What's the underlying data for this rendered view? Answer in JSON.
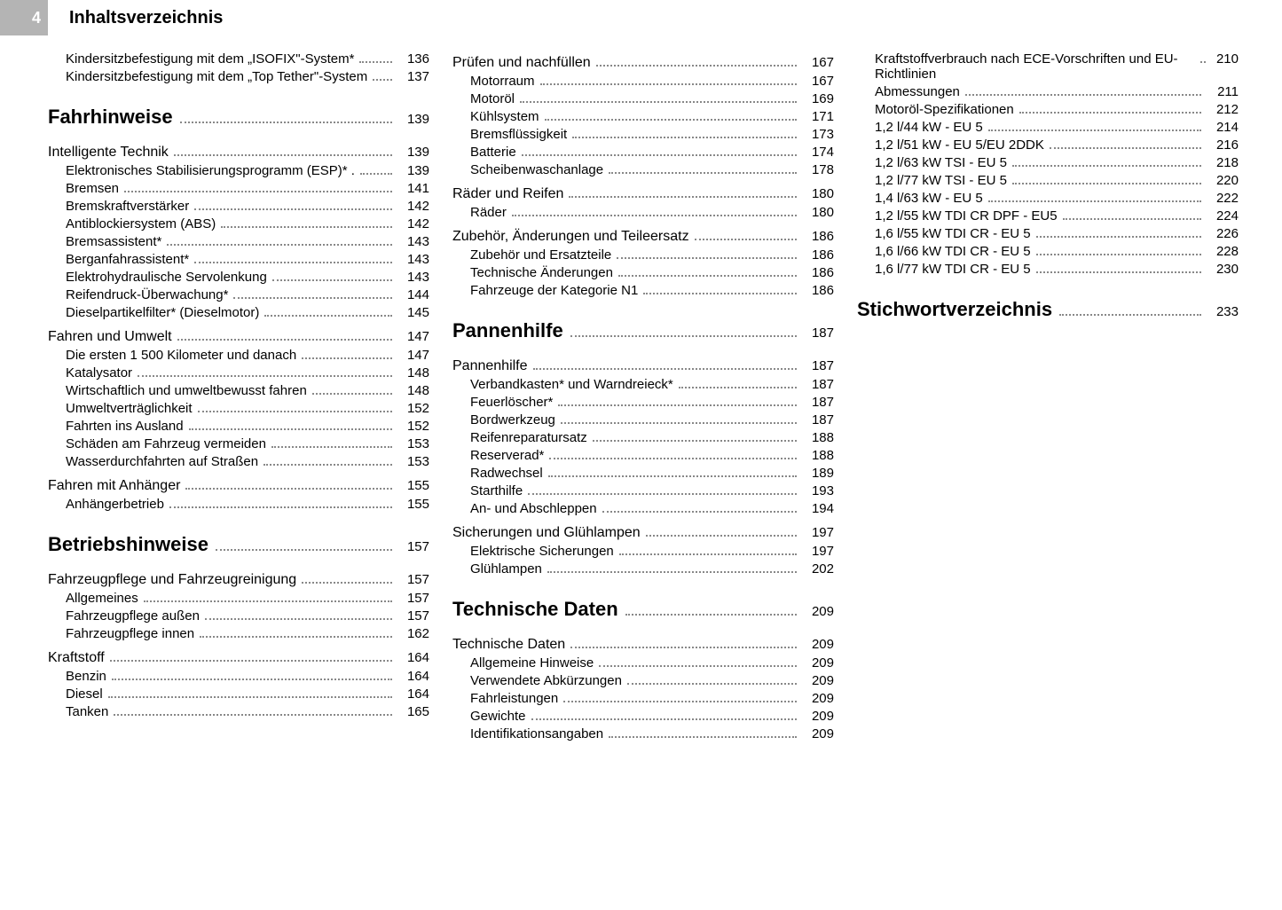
{
  "header": {
    "page_number": "4",
    "title": "Inhaltsverzeichnis"
  },
  "columns": [
    {
      "blocks": [
        {
          "type": "item",
          "indent": 1,
          "label": "Kindersitzbefestigung mit dem „ISOFIX\"-System*",
          "page": "136"
        },
        {
          "type": "item",
          "indent": 1,
          "label": "Kindersitzbefestigung mit dem „Top Tether\"-System",
          "page": "137"
        },
        {
          "type": "section",
          "label": "Fahrhinweise",
          "page": "139"
        },
        {
          "type": "sub",
          "label": "Intelligente Technik",
          "page": "139",
          "first": true
        },
        {
          "type": "item",
          "indent": 1,
          "label": "Elektronisches Stabilisierungsprogramm (ESP)*   .",
          "page": "139"
        },
        {
          "type": "item",
          "indent": 1,
          "label": "Bremsen",
          "page": "141"
        },
        {
          "type": "item",
          "indent": 1,
          "label": "Bremskraftverstärker",
          "page": "142"
        },
        {
          "type": "item",
          "indent": 1,
          "label": "Antiblockiersystem (ABS)",
          "page": "142"
        },
        {
          "type": "item",
          "indent": 1,
          "label": "Bremsassistent*",
          "page": "143"
        },
        {
          "type": "item",
          "indent": 1,
          "label": "Berganfahrassistent*",
          "page": "143"
        },
        {
          "type": "item",
          "indent": 1,
          "label": "Elektrohydraulische Servolenkung",
          "page": "143"
        },
        {
          "type": "item",
          "indent": 1,
          "label": "Reifendruck-Überwachung*",
          "page": "144"
        },
        {
          "type": "item",
          "indent": 1,
          "label": "Dieselpartikelfilter* (Dieselmotor)",
          "page": "145"
        },
        {
          "type": "sub",
          "label": "Fahren und Umwelt",
          "page": "147"
        },
        {
          "type": "item",
          "indent": 1,
          "label": "Die ersten 1 500 Kilometer und danach",
          "page": "147"
        },
        {
          "type": "item",
          "indent": 1,
          "label": "Katalysator",
          "page": "148"
        },
        {
          "type": "item",
          "indent": 1,
          "label": "Wirtschaftlich und umweltbewusst fahren",
          "page": "148"
        },
        {
          "type": "item",
          "indent": 1,
          "label": "Umweltverträglichkeit",
          "page": "152"
        },
        {
          "type": "item",
          "indent": 1,
          "label": "Fahrten ins Ausland",
          "page": "152"
        },
        {
          "type": "item",
          "indent": 1,
          "label": "Schäden am Fahrzeug vermeiden",
          "page": "153"
        },
        {
          "type": "item",
          "indent": 1,
          "label": "Wasserdurchfahrten auf Straßen",
          "page": "153"
        },
        {
          "type": "sub",
          "label": "Fahren mit Anhänger",
          "page": "155"
        },
        {
          "type": "item",
          "indent": 1,
          "label": "Anhängerbetrieb",
          "page": "155"
        },
        {
          "type": "section",
          "label": "Betriebshinweise",
          "page": "157"
        },
        {
          "type": "sub",
          "label": "Fahrzeugpflege und Fahrzeugreinigung",
          "page": "157",
          "first": true
        },
        {
          "type": "item",
          "indent": 1,
          "label": "Allgemeines",
          "page": "157"
        },
        {
          "type": "item",
          "indent": 1,
          "label": "Fahrzeugpflege außen",
          "page": "157"
        },
        {
          "type": "item",
          "indent": 1,
          "label": "Fahrzeugpflege innen",
          "page": "162"
        },
        {
          "type": "sub",
          "label": "Kraftstoff",
          "page": "164"
        },
        {
          "type": "item",
          "indent": 1,
          "label": "Benzin",
          "page": "164"
        },
        {
          "type": "item",
          "indent": 1,
          "label": "Diesel",
          "page": "164"
        },
        {
          "type": "item",
          "indent": 1,
          "label": "Tanken",
          "page": "165"
        }
      ]
    },
    {
      "blocks": [
        {
          "type": "sub",
          "label": "Prüfen und nachfüllen",
          "page": "167",
          "tight": true
        },
        {
          "type": "item",
          "indent": 1,
          "label": "Motorraum",
          "page": "167"
        },
        {
          "type": "item",
          "indent": 1,
          "label": "Motoröl",
          "page": "169"
        },
        {
          "type": "item",
          "indent": 1,
          "label": "Kühlsystem",
          "page": "171"
        },
        {
          "type": "item",
          "indent": 1,
          "label": "Bremsflüssigkeit",
          "page": "173"
        },
        {
          "type": "item",
          "indent": 1,
          "label": "Batterie",
          "page": "174"
        },
        {
          "type": "item",
          "indent": 1,
          "label": "Scheibenwaschanlage",
          "page": "178"
        },
        {
          "type": "sub",
          "label": "Räder und Reifen",
          "page": "180"
        },
        {
          "type": "item",
          "indent": 1,
          "label": "Räder",
          "page": "180"
        },
        {
          "type": "sub",
          "label": "Zubehör, Änderungen und Teileersatz",
          "page": "186"
        },
        {
          "type": "item",
          "indent": 1,
          "label": "Zubehör und Ersatzteile",
          "page": "186"
        },
        {
          "type": "item",
          "indent": 1,
          "label": "Technische Änderungen",
          "page": "186"
        },
        {
          "type": "item",
          "indent": 1,
          "label": "Fahrzeuge der Kategorie N1",
          "page": "186"
        },
        {
          "type": "section",
          "label": "Pannenhilfe",
          "page": "187"
        },
        {
          "type": "sub",
          "label": "Pannenhilfe",
          "page": "187",
          "first": true
        },
        {
          "type": "item",
          "indent": 1,
          "label": "Verbandkasten* und Warndreieck*",
          "page": "187"
        },
        {
          "type": "item",
          "indent": 1,
          "label": "Feuerlöscher*",
          "page": "187"
        },
        {
          "type": "item",
          "indent": 1,
          "label": "Bordwerkzeug",
          "page": "187"
        },
        {
          "type": "item",
          "indent": 1,
          "label": "Reifenreparatursatz",
          "page": "188"
        },
        {
          "type": "item",
          "indent": 1,
          "label": "Reserverad*",
          "page": "188"
        },
        {
          "type": "item",
          "indent": 1,
          "label": "Radwechsel",
          "page": "189"
        },
        {
          "type": "item",
          "indent": 1,
          "label": "Starthilfe",
          "page": "193"
        },
        {
          "type": "item",
          "indent": 1,
          "label": "An- und Abschleppen",
          "page": "194"
        },
        {
          "type": "sub",
          "label": "Sicherungen und Glühlampen",
          "page": "197"
        },
        {
          "type": "item",
          "indent": 1,
          "label": "Elektrische Sicherungen",
          "page": "197"
        },
        {
          "type": "item",
          "indent": 1,
          "label": "Glühlampen",
          "page": "202"
        },
        {
          "type": "section",
          "label": "Technische Daten",
          "page": "209"
        },
        {
          "type": "sub",
          "label": "Technische Daten",
          "page": "209",
          "first": true
        },
        {
          "type": "item",
          "indent": 1,
          "label": "Allgemeine Hinweise",
          "page": "209"
        },
        {
          "type": "item",
          "indent": 1,
          "label": "Verwendete Abkürzungen",
          "page": "209"
        },
        {
          "type": "item",
          "indent": 1,
          "label": "Fahrleistungen",
          "page": "209"
        },
        {
          "type": "item",
          "indent": 1,
          "label": "Gewichte",
          "page": "209"
        },
        {
          "type": "item",
          "indent": 1,
          "label": "Identifikationsangaben",
          "page": "209"
        }
      ]
    },
    {
      "blocks": [
        {
          "type": "item",
          "indent": 1,
          "label": "Kraftstoffverbrauch nach ECE-Vorschriften und EU-Richtlinien",
          "page": "210",
          "wrap": true
        },
        {
          "type": "item",
          "indent": 1,
          "label": "Abmessungen",
          "page": "211"
        },
        {
          "type": "item",
          "indent": 1,
          "label": "Motoröl-Spezifikationen",
          "page": "212"
        },
        {
          "type": "item",
          "indent": 1,
          "label": "1,2 l/44 kW - EU 5",
          "page": "214"
        },
        {
          "type": "item",
          "indent": 1,
          "label": "1,2 l/51 kW - EU 5/EU 2DDK",
          "page": "216"
        },
        {
          "type": "item",
          "indent": 1,
          "label": "1,2 l/63 kW TSI - EU 5",
          "page": "218"
        },
        {
          "type": "item",
          "indent": 1,
          "label": "1,2 l/77 kW TSI - EU 5",
          "page": "220"
        },
        {
          "type": "item",
          "indent": 1,
          "label": "1,4 l/63 kW - EU 5",
          "page": "222"
        },
        {
          "type": "item",
          "indent": 1,
          "label": "1,2 l/55 kW TDI CR DPF - EU5",
          "page": "224"
        },
        {
          "type": "item",
          "indent": 1,
          "label": "1,6 l/55 kW TDI CR - EU 5",
          "page": "226"
        },
        {
          "type": "item",
          "indent": 1,
          "label": "1,6 l/66 kW TDI CR - EU 5",
          "page": "228"
        },
        {
          "type": "item",
          "indent": 1,
          "label": "1,6 l/77 kW TDI CR - EU 5",
          "page": "230"
        },
        {
          "type": "section",
          "label": "Stichwortverzeichnis",
          "page": "233"
        }
      ]
    }
  ]
}
